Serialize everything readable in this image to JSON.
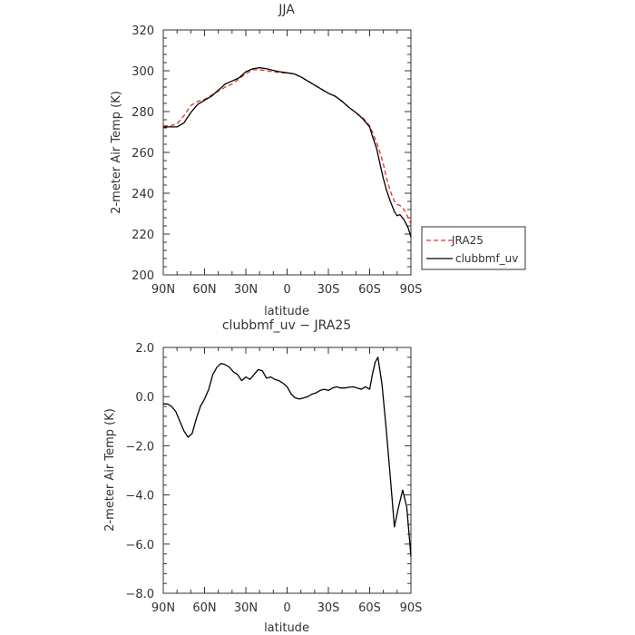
{
  "chart_data": [
    {
      "type": "line",
      "title": "JJA",
      "xlabel": "latitude",
      "ylabel": "2-meter Air Temp (K)",
      "xlim": [
        90,
        -90
      ],
      "ylim": [
        200,
        320
      ],
      "x_tick_values": [
        90,
        60,
        30,
        0,
        -30,
        -60,
        -90
      ],
      "x_tick_labels": [
        "90N",
        "60N",
        "30N",
        "0",
        "30S",
        "60S",
        "90S"
      ],
      "y_tick_values": [
        200,
        220,
        240,
        260,
        280,
        300,
        320
      ],
      "y_tick_labels": [
        "200",
        "220",
        "240",
        "260",
        "280",
        "300",
        "320"
      ],
      "legend": {
        "placement": "right",
        "entries": [
          "JRA25",
          "clubbmf_uv"
        ]
      },
      "series": [
        {
          "name": "JRA25",
          "color": "#e8302a",
          "dash": "dashed",
          "x": [
            90,
            85,
            80,
            75,
            70,
            65,
            60,
            55,
            50,
            45,
            40,
            35,
            30,
            25,
            20,
            15,
            10,
            5,
            0,
            -5,
            -10,
            -15,
            -20,
            -25,
            -30,
            -35,
            -40,
            -45,
            -50,
            -55,
            -60,
            -62,
            -65,
            -68,
            -70,
            -72,
            -75,
            -78,
            -80,
            -82,
            -85,
            -88,
            -90
          ],
          "y": [
            273,
            273,
            274,
            278,
            283,
            285,
            286,
            288,
            290,
            292,
            293.5,
            296,
            298.5,
            300.5,
            300.5,
            300,
            299.5,
            299,
            299,
            298.5,
            297,
            295,
            293,
            291,
            289,
            287.5,
            285,
            282,
            279.5,
            277,
            273,
            270,
            265,
            259,
            254,
            248,
            241,
            236,
            234.5,
            234,
            232,
            228,
            225
          ]
        },
        {
          "name": "clubbmf_uv",
          "color": "#000000",
          "dash": "solid",
          "x": [
            90,
            85,
            80,
            75,
            70,
            65,
            60,
            55,
            50,
            45,
            40,
            35,
            30,
            25,
            20,
            15,
            10,
            5,
            0,
            -5,
            -10,
            -15,
            -20,
            -25,
            -30,
            -35,
            -40,
            -45,
            -50,
            -55,
            -60,
            -62,
            -65,
            -68,
            -70,
            -72,
            -75,
            -78,
            -80,
            -82,
            -85,
            -88,
            -90
          ],
          "y": [
            272.5,
            272.5,
            272.5,
            274.5,
            279.5,
            283.5,
            285.5,
            287.5,
            290.5,
            293.5,
            295,
            296.5,
            299.5,
            301,
            301.5,
            301,
            300.2,
            299.5,
            299,
            298.5,
            297,
            295,
            293,
            291,
            289,
            287.5,
            285,
            282,
            279.5,
            276.5,
            272.5,
            268,
            262,
            253,
            247,
            242,
            236,
            231,
            229,
            229.5,
            227,
            223,
            218.5
          ]
        }
      ]
    },
    {
      "type": "line",
      "title": "clubbmf_uv − JRA25",
      "xlabel": "latitude",
      "ylabel": "2-meter Air Temp (K)",
      "xlim": [
        90,
        -90
      ],
      "ylim": [
        -8,
        2
      ],
      "x_tick_values": [
        90,
        60,
        30,
        0,
        -30,
        -60,
        -90
      ],
      "x_tick_labels": [
        "90N",
        "60N",
        "30N",
        "0",
        "30S",
        "60S",
        "90S"
      ],
      "y_tick_values": [
        -8,
        -6,
        -4,
        -2,
        0,
        2
      ],
      "y_tick_labels": [
        "−8.0",
        "−6.0",
        "−4.0",
        "−2.0",
        "0.0",
        "2.0"
      ],
      "series": [
        {
          "color": "#000000",
          "dash": "solid",
          "x": [
            90,
            87,
            84,
            81,
            78,
            75,
            72,
            69,
            66,
            63,
            60,
            57,
            54,
            51,
            48,
            45,
            42,
            39,
            36,
            33,
            30,
            27,
            24,
            21,
            18,
            15,
            12,
            9,
            6,
            3,
            0,
            -3,
            -6,
            -9,
            -12,
            -15,
            -18,
            -21,
            -24,
            -27,
            -30,
            -33,
            -36,
            -39,
            -42,
            -45,
            -48,
            -51,
            -54,
            -57,
            -60,
            -62,
            -64,
            -66,
            -69,
            -72,
            -75,
            -78,
            -81,
            -84,
            -87,
            -90
          ],
          "y": [
            -0.3,
            -0.3,
            -0.4,
            -0.6,
            -1.0,
            -1.4,
            -1.65,
            -1.5,
            -0.9,
            -0.4,
            -0.1,
            0.3,
            0.9,
            1.2,
            1.35,
            1.3,
            1.2,
            1.0,
            0.9,
            0.65,
            0.8,
            0.7,
            0.9,
            1.1,
            1.05,
            0.75,
            0.8,
            0.7,
            0.65,
            0.55,
            0.4,
            0.1,
            -0.05,
            -0.1,
            -0.05,
            0.0,
            0.1,
            0.15,
            0.25,
            0.3,
            0.25,
            0.35,
            0.4,
            0.35,
            0.35,
            0.38,
            0.4,
            0.35,
            0.3,
            0.4,
            0.3,
            0.9,
            1.4,
            1.6,
            0.5,
            -1.3,
            -3.3,
            -5.3,
            -4.5,
            -3.8,
            -4.5,
            -6.5
          ]
        }
      ]
    }
  ]
}
